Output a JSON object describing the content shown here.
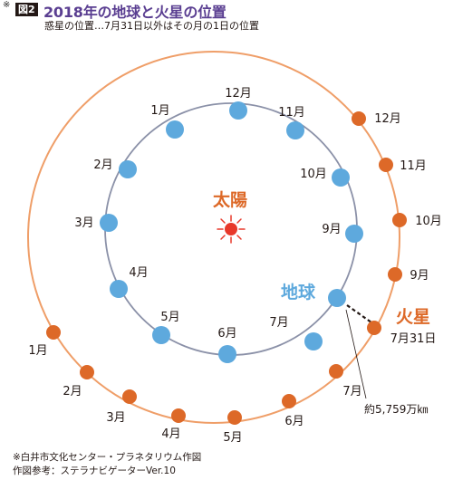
{
  "header": {
    "note_mark": "※",
    "figure_badge": "図2",
    "title": "2018年の地球と火星の位置",
    "subtitle": "惑星の位置…7月31日以外はその月の1日の位置"
  },
  "sun": {
    "label": "太陽"
  },
  "earth": {
    "label": "地球",
    "months": [
      "12月",
      "11月",
      "10月",
      "9月",
      "7月",
      "6月",
      "5月",
      "4月",
      "3月",
      "2月",
      "1月"
    ]
  },
  "mars": {
    "label": "火星",
    "date_label": "7月31日",
    "months": [
      "12月",
      "11月",
      "10月",
      "9月",
      "7月",
      "6月",
      "5月",
      "4月",
      "3月",
      "2月",
      "1月"
    ]
  },
  "distance": {
    "label": "約5,759万㎞"
  },
  "footer": {
    "line1": "※白井市文化センター・プラネタリウム作図",
    "line2": "作図参考：ステラナビゲーターVer.10"
  },
  "colors": {
    "title": "#5a3e91",
    "earth_orbit": "#8b91a8",
    "earth_dot": "#5ea9dd",
    "mars_orbit": "#ef9e68",
    "mars_dot": "#dd6928",
    "sun": "#e8382a",
    "sun_label": "#dd6928"
  }
}
